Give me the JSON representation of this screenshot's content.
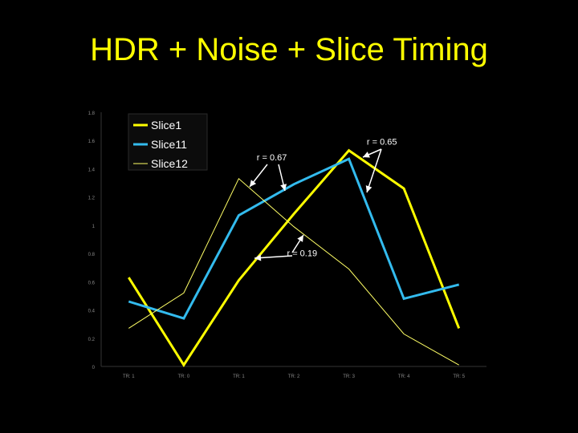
{
  "slide": {
    "title": "HDR + Noise + Slice Timing"
  },
  "chart_data": {
    "type": "line",
    "title": "",
    "xlabel": "",
    "ylabel": "",
    "categories": [
      "TR: 1",
      "TR: 0",
      "TR: 1",
      "TR: 2",
      "TR: 3",
      "TR: 4",
      "TR: 5"
    ],
    "ylim": [
      0,
      1.8
    ],
    "yticks": [
      "0",
      "0.2",
      "0.4",
      "0.6",
      "0.8",
      "1",
      "1.2",
      "1.4",
      "1.6",
      "1.8"
    ],
    "grid": false,
    "legend_position": "top-left",
    "series": [
      {
        "name": "Slice1",
        "color": "#ffff00",
        "stroke": "thick",
        "values": [
          0.63,
          0.01,
          0.61,
          1.08,
          1.53,
          1.26,
          0.27
        ]
      },
      {
        "name": "Slice11",
        "color": "#33bbee",
        "stroke": "thick",
        "values": [
          0.46,
          0.34,
          1.07,
          1.29,
          1.47,
          0.48,
          0.58
        ]
      },
      {
        "name": "Slice12",
        "color": "#ffff66",
        "stroke": "thin",
        "values": [
          0.27,
          0.52,
          1.33,
          0.99,
          0.69,
          0.23,
          0.01
        ]
      }
    ],
    "annotations": [
      {
        "text": "r = 0.65",
        "x": 4.6,
        "y": 1.57
      },
      {
        "text": "r = 0.67",
        "x": 2.6,
        "y": 1.46
      },
      {
        "text": "r = 0.19",
        "x": 3.15,
        "y": 0.78
      }
    ]
  }
}
